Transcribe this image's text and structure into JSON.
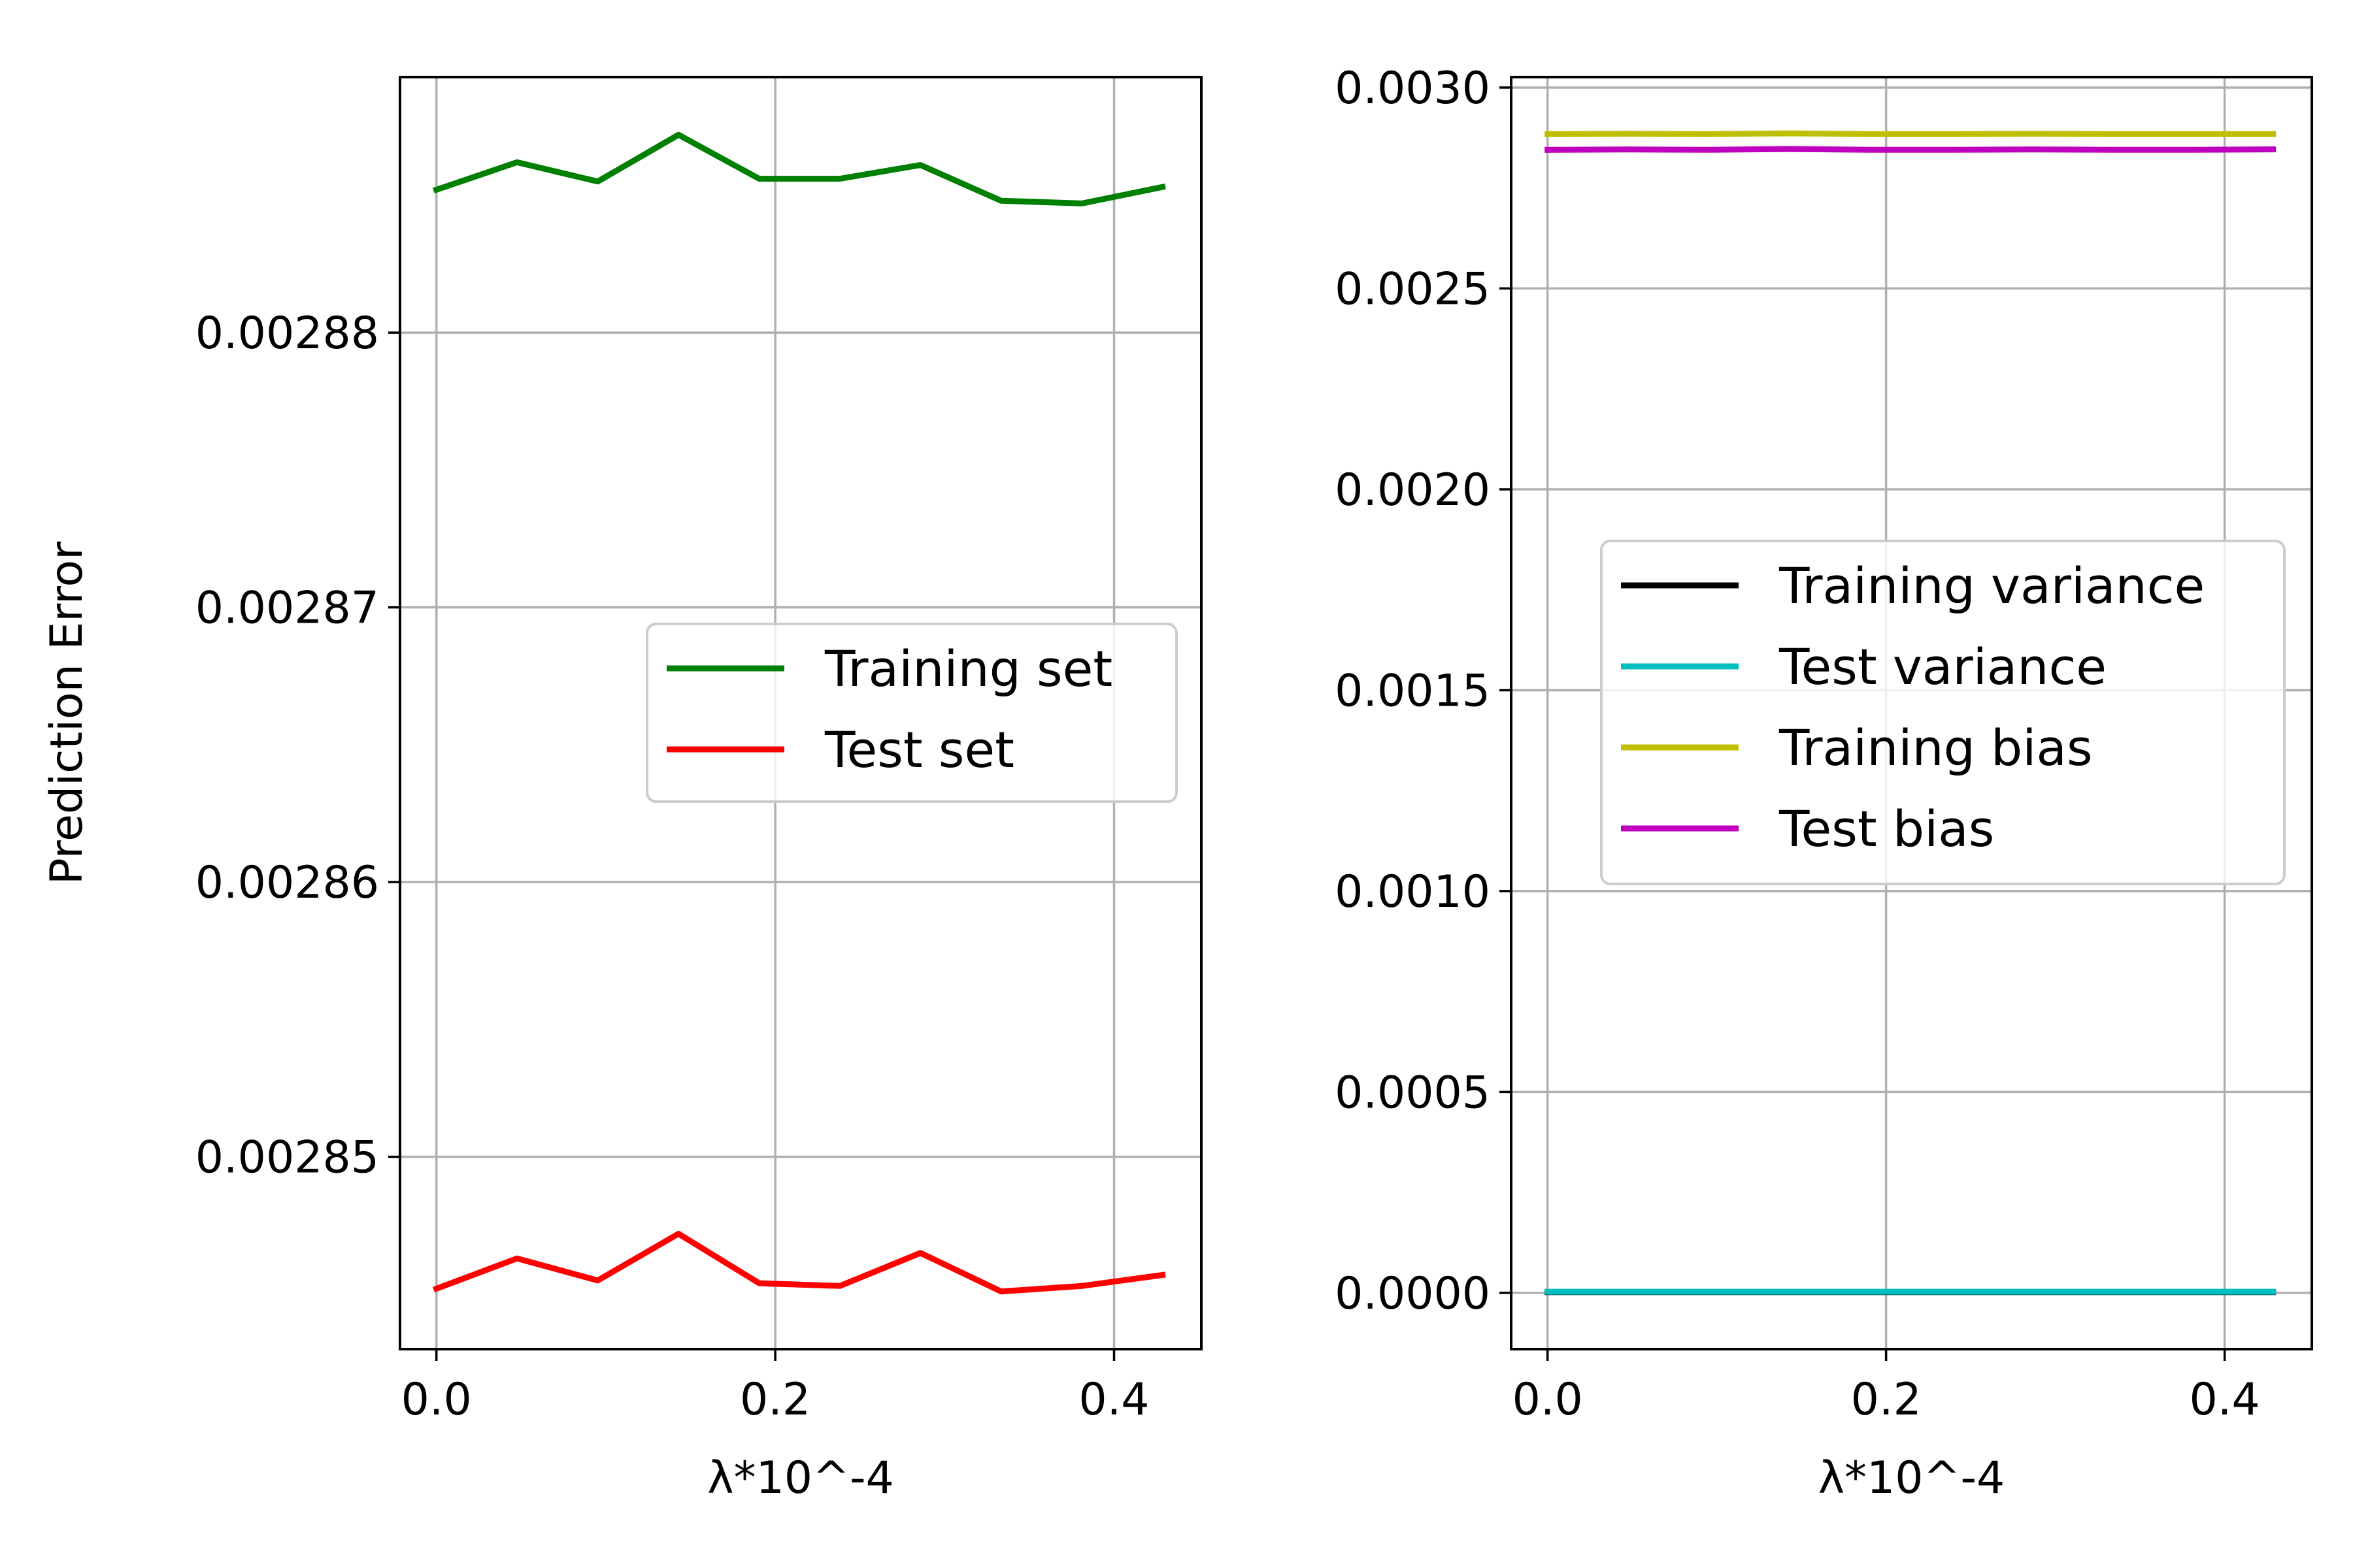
{
  "chart_data": [
    {
      "type": "line",
      "xlabel": "λ*10^-4",
      "ylabel": "Prediction Error",
      "xlim": [
        -0.0215,
        0.4515
      ],
      "ylim": [
        0.002843,
        0.0028893
      ],
      "xticks": [
        0.0,
        0.2,
        0.4
      ],
      "xtick_labels": [
        "0.0",
        "0.2",
        "0.4"
      ],
      "yticks": [
        0.00285,
        0.00286,
        0.00287,
        0.00288
      ],
      "ytick_labels": [
        "0.00285",
        "0.00286",
        "0.00287",
        "0.00288"
      ],
      "grid": true,
      "legend": "center-right",
      "x": [
        0.0,
        0.0476,
        0.0952,
        0.1429,
        0.1905,
        0.2381,
        0.2857,
        0.3333,
        0.381,
        0.4286
      ],
      "series": [
        {
          "name": "Training set",
          "color": "#008000",
          "values": [
            0.0028852,
            0.0028862,
            0.0028855,
            0.0028872,
            0.0028856,
            0.0028856,
            0.0028861,
            0.0028848,
            0.0028847,
            0.0028853
          ]
        },
        {
          "name": "Test set",
          "color": "#ff0000",
          "values": [
            0.0028452,
            0.0028463,
            0.0028455,
            0.0028472,
            0.0028454,
            0.0028453,
            0.0028465,
            0.0028451,
            0.0028453,
            0.0028457
          ]
        }
      ]
    },
    {
      "type": "line",
      "xlabel": "λ*10^-4",
      "ylabel": "",
      "xlim": [
        -0.0215,
        0.4515
      ],
      "ylim": [
        -0.00014,
        0.003026
      ],
      "xticks": [
        0.0,
        0.2,
        0.4
      ],
      "xtick_labels": [
        "0.0",
        "0.2",
        "0.4"
      ],
      "yticks": [
        0.0,
        0.0005,
        0.001,
        0.0015,
        0.002,
        0.0025,
        0.003
      ],
      "ytick_labels": [
        "0.0000",
        "0.0005",
        "0.0010",
        "0.0015",
        "0.0020",
        "0.0025",
        "0.0030"
      ],
      "grid": true,
      "legend": "center-right",
      "x": [
        0.0,
        0.0476,
        0.0952,
        0.1429,
        0.1905,
        0.2381,
        0.2857,
        0.3333,
        0.381,
        0.4286
      ],
      "series": [
        {
          "name": "Training variance",
          "color": "#000000",
          "values": [
            2e-06,
            2e-06,
            2e-06,
            2e-06,
            2e-06,
            2e-06,
            2e-06,
            2e-06,
            2e-06,
            2e-06
          ]
        },
        {
          "name": "Test variance",
          "color": "#00bfbf",
          "values": [
            3e-06,
            3e-06,
            3e-06,
            3e-06,
            3e-06,
            3e-06,
            3e-06,
            3e-06,
            3e-06,
            3e-06
          ]
        },
        {
          "name": "Training bias",
          "color": "#bfbf00",
          "values": [
            0.002884,
            0.002885,
            0.002884,
            0.002886,
            0.002884,
            0.002884,
            0.002885,
            0.002884,
            0.002884,
            0.002884
          ]
        },
        {
          "name": "Test bias",
          "color": "#bf00bf",
          "values": [
            0.002845,
            0.002846,
            0.002845,
            0.002847,
            0.002845,
            0.002845,
            0.002846,
            0.002845,
            0.002845,
            0.002846
          ]
        }
      ]
    }
  ]
}
